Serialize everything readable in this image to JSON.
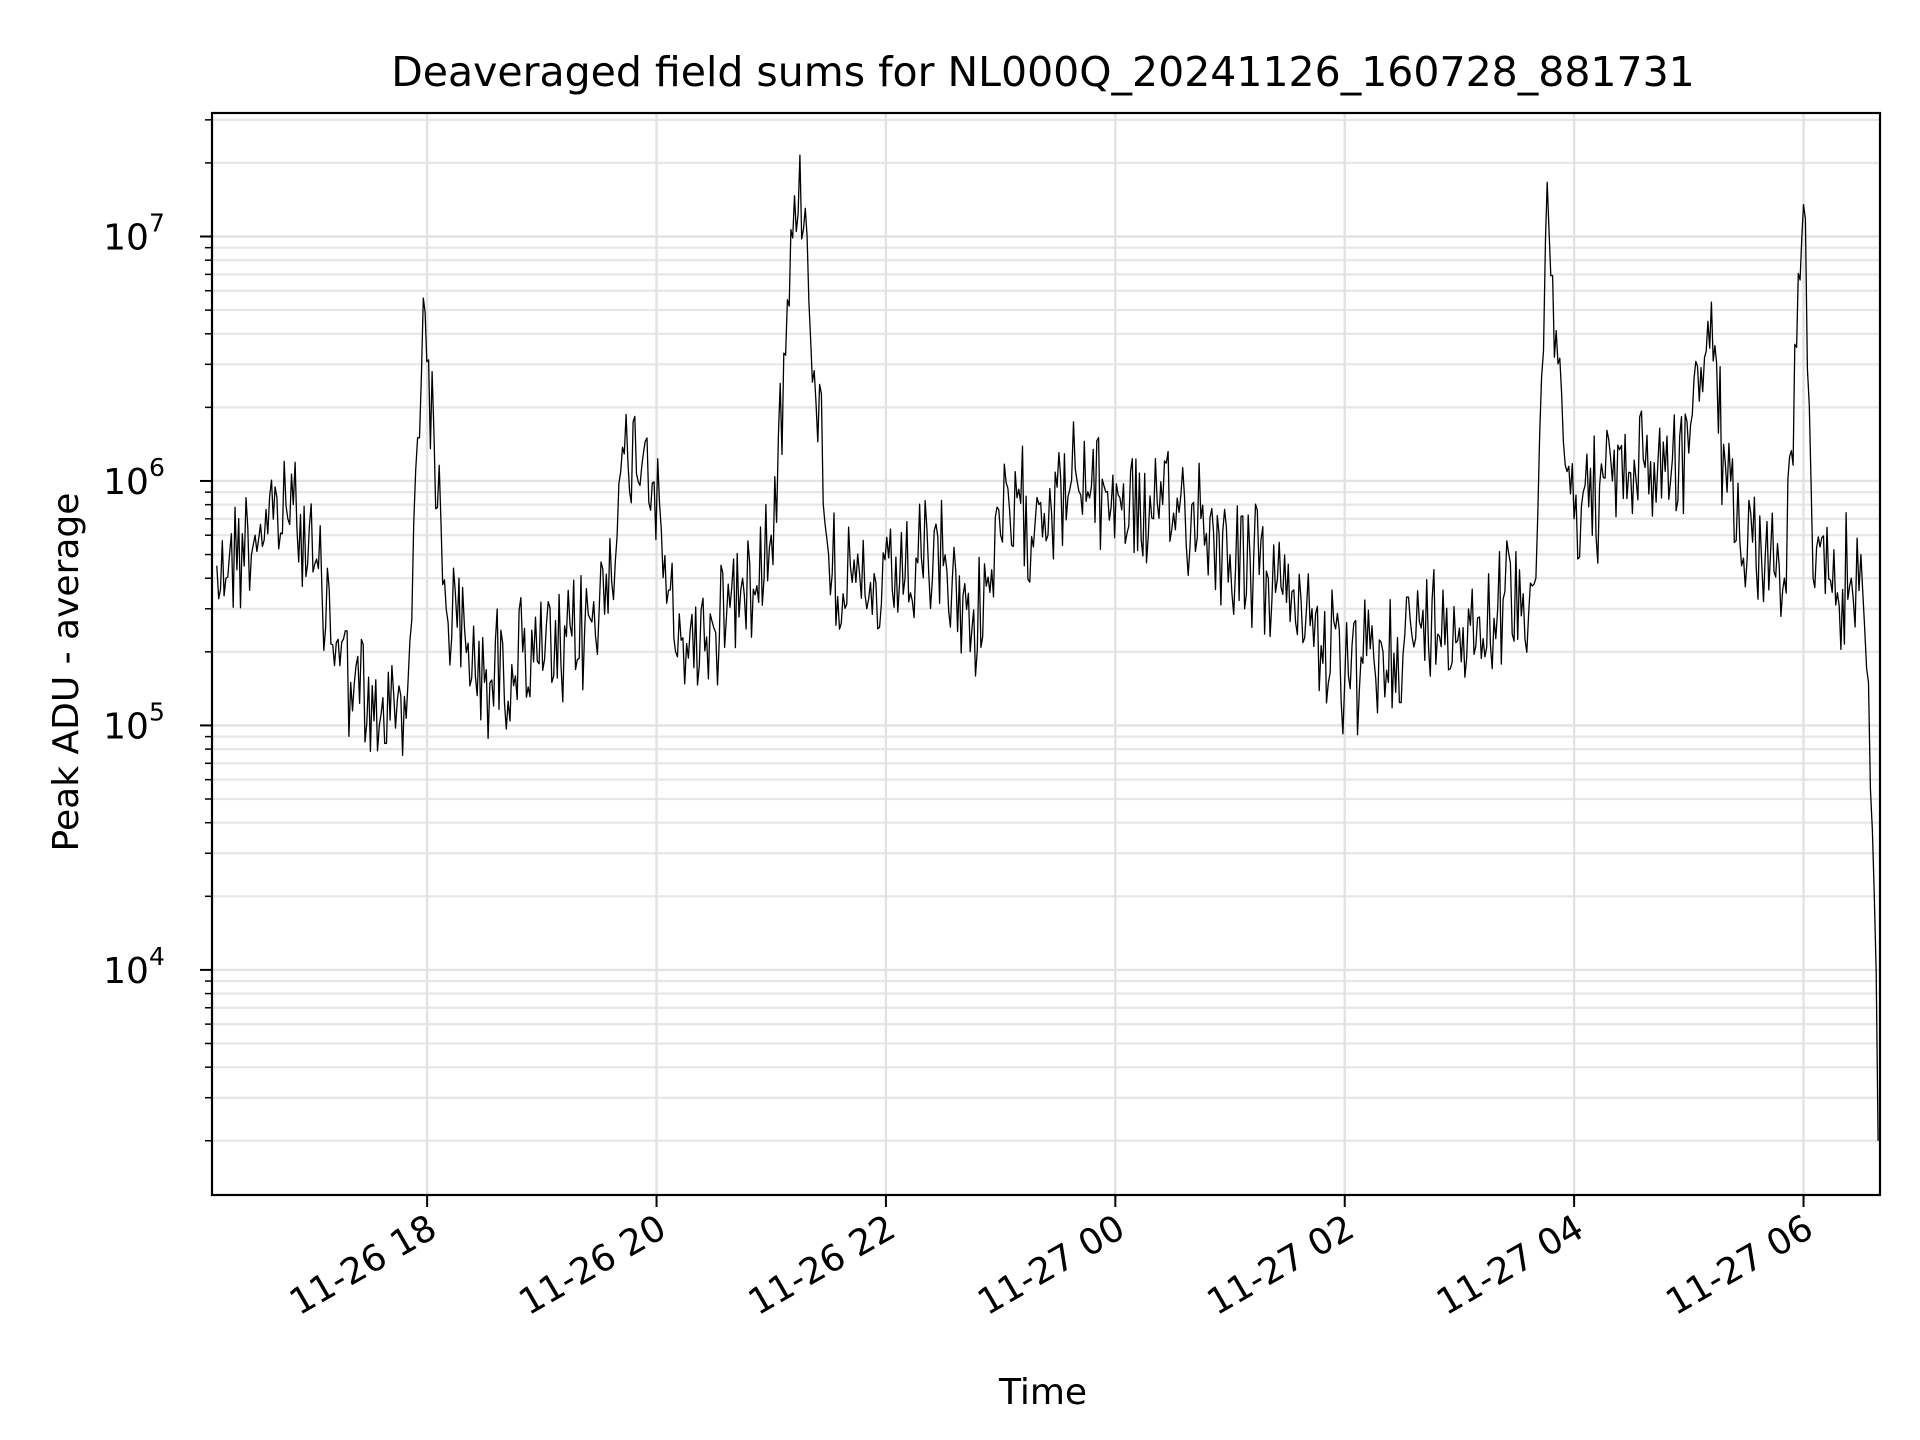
{
  "chart_data": {
    "type": "line",
    "title": "Deaveraged field sums for NL000Q_20241126_160728_881731",
    "xlabel": "Time",
    "ylabel": "Peak ADU - average",
    "yscale": "log",
    "xlim": [
      "2024-11-26 16:07:28",
      "2024-11-27 06:40:00"
    ],
    "ylim": [
      1200,
      32000000
    ],
    "grid": true,
    "x_ticks": [
      {
        "value": "2024-11-26 18:00",
        "label": "11-26 18"
      },
      {
        "value": "2024-11-26 20:00",
        "label": "11-26 20"
      },
      {
        "value": "2024-11-26 22:00",
        "label": "11-26 22"
      },
      {
        "value": "2024-11-27 00:00",
        "label": "11-27 00"
      },
      {
        "value": "2024-11-27 02:00",
        "label": "11-27 02"
      },
      {
        "value": "2024-11-27 04:00",
        "label": "11-27 04"
      },
      {
        "value": "2024-11-27 06:00",
        "label": "11-27 06"
      }
    ],
    "y_ticks": [
      {
        "value": 10000,
        "base": "10",
        "exp": "4"
      },
      {
        "value": 100000,
        "base": "10",
        "exp": "5"
      },
      {
        "value": 1000000,
        "base": "10",
        "exp": "6"
      },
      {
        "value": 10000000,
        "base": "10",
        "exp": "7"
      }
    ],
    "series": [
      {
        "color": "#000000",
        "x": [
          "2024-11-26 16:10",
          "2024-11-26 16:30",
          "2024-11-26 16:50",
          "2024-11-26 17:05",
          "2024-11-26 17:20",
          "2024-11-26 17:35",
          "2024-11-26 17:50",
          "2024-11-26 17:58",
          "2024-11-26 18:10",
          "2024-11-26 18:30",
          "2024-11-26 18:50",
          "2024-11-26 19:10",
          "2024-11-26 19:30",
          "2024-11-26 19:45",
          "2024-11-26 19:55",
          "2024-11-26 20:10",
          "2024-11-26 20:30",
          "2024-11-26 20:45",
          "2024-11-26 21:00",
          "2024-11-26 21:15",
          "2024-11-26 21:30",
          "2024-11-26 21:50",
          "2024-11-26 22:10",
          "2024-11-26 22:30",
          "2024-11-26 22:45",
          "2024-11-26 23:00",
          "2024-11-26 23:20",
          "2024-11-26 23:40",
          "2024-11-26 23:55",
          "2024-11-27 00:20",
          "2024-11-27 00:40",
          "2024-11-27 01:00",
          "2024-11-27 01:20",
          "2024-11-27 01:40",
          "2024-11-27 02:00",
          "2024-11-27 02:20",
          "2024-11-27 02:40",
          "2024-11-27 03:00",
          "2024-11-27 03:20",
          "2024-11-27 03:40",
          "2024-11-27 03:45",
          "2024-11-27 04:00",
          "2024-11-27 04:20",
          "2024-11-27 04:40",
          "2024-11-27 05:00",
          "2024-11-27 05:10",
          "2024-11-27 05:20",
          "2024-11-27 05:40",
          "2024-11-27 05:50",
          "2024-11-27 06:00",
          "2024-11-27 06:05",
          "2024-11-27 06:15",
          "2024-11-27 06:25",
          "2024-11-27 06:30",
          "2024-11-27 06:34",
          "2024-11-27 06:37",
          "2024-11-27 06:39"
        ],
        "y": [
          450000,
          600000,
          800000,
          350000,
          150000,
          100000,
          150000,
          5600000,
          300000,
          150000,
          200000,
          180000,
          300000,
          1200000,
          1500000,
          200000,
          250000,
          400000,
          600000,
          21500000,
          500000,
          300000,
          400000,
          450000,
          250000,
          600000,
          800000,
          1000000,
          900000,
          700000,
          800000,
          500000,
          400000,
          300000,
          150000,
          200000,
          250000,
          250000,
          300000,
          400000,
          9800000,
          700000,
          1000000,
          1200000,
          1300000,
          4500000,
          900000,
          500000,
          400000,
          13500000,
          400000,
          350000,
          400000,
          500000,
          150000,
          20000,
          2000
        ]
      }
    ]
  }
}
